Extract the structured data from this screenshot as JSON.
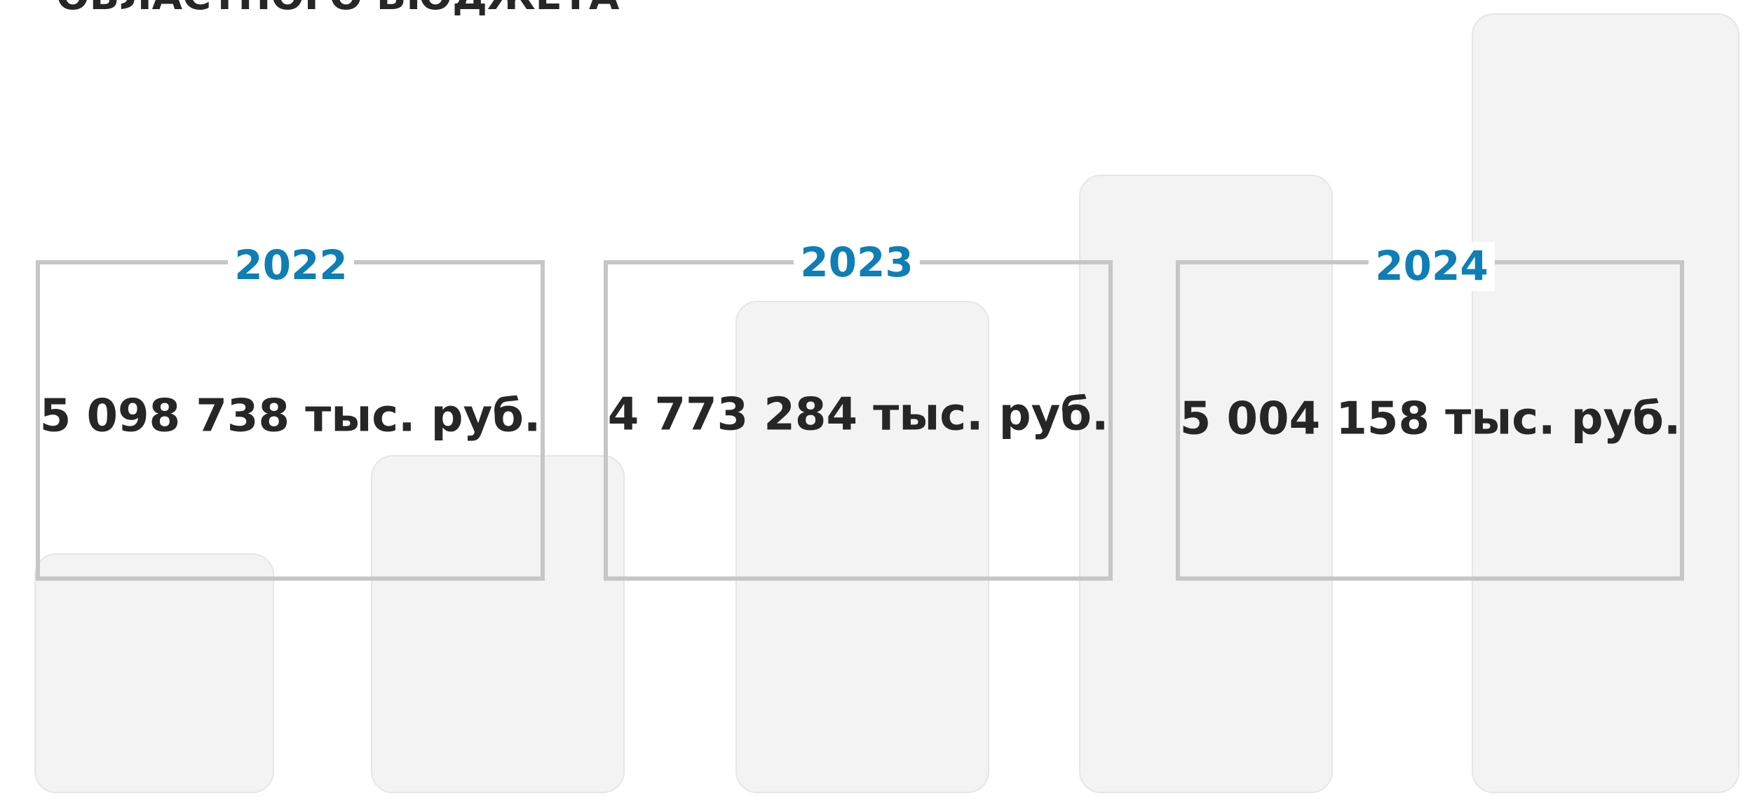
{
  "title": "ОБЛАСТНОГО БЮДЖЕТА",
  "cards": [
    {
      "year": "2022",
      "amount": "5 098 738 тыс. руб."
    },
    {
      "year": "2023",
      "amount": "4 773 284 тыс. руб."
    },
    {
      "year": "2024",
      "amount": "5 004 158 тыс. руб."
    }
  ]
}
